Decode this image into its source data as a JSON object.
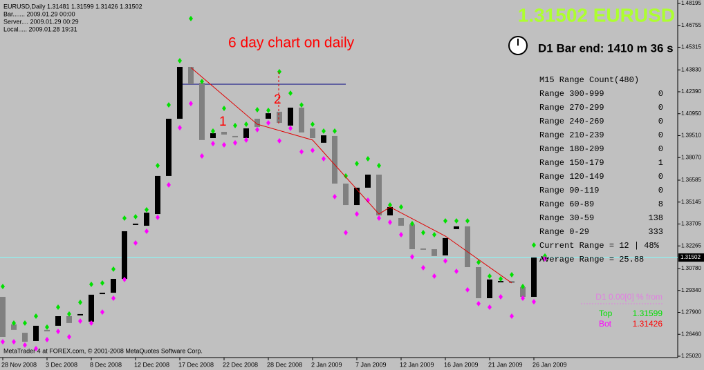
{
  "chart_data": {
    "type": "candlestick",
    "header": [
      "EURUSD,Daily  1.31481 1.31599 1.31426 1.31502",
      "Bar....... 2009.01.29 00:00",
      "Server.... 2009.01.29 00:29",
      "Local..... 2009.01.28 19:31"
    ],
    "title": "1.31502 EURUSD",
    "annotation": "6 day chart on daily",
    "marks": [
      "1",
      "2"
    ],
    "bar_end": "D1 Bar end: 1410 m 36 s",
    "range_panel": {
      "title": "M15 Range Count(480)",
      "rows": [
        {
          "label": "Range 300-999",
          "count": 0
        },
        {
          "label": "Range 270-299",
          "count": 0
        },
        {
          "label": "Range 240-269",
          "count": 0
        },
        {
          "label": "Range 210-239",
          "count": 0
        },
        {
          "label": "Range 180-209",
          "count": 0
        },
        {
          "label": "Range 150-179",
          "count": 1
        },
        {
          "label": "Range 120-149",
          "count": 0
        },
        {
          "label": "Range 90-119",
          "count": 0
        },
        {
          "label": "Range 60-89",
          "count": 8
        },
        {
          "label": "Range 30-59",
          "count": 138
        },
        {
          "label": "Range 0-29",
          "count": 333
        }
      ],
      "current": "Current Range = 12 | 48%",
      "average": "Average Range = 25.88"
    },
    "d1_note": "D1 0.00[0] % from",
    "top": {
      "label": "Top",
      "value": 1.31599
    },
    "bot": {
      "label": "Bot",
      "value": 1.31426
    },
    "footer": "MetaTrader 4 at FOREX.com, © 2001-2008 MetaQuotes Software Corp.",
    "categories": [
      "28 Nov 2008",
      null,
      null,
      null,
      "3 Dec 2008",
      null,
      null,
      null,
      "8 Dec 2008",
      null,
      null,
      null,
      "12 Dec 2008",
      null,
      null,
      null,
      "17 Dec 2008",
      null,
      null,
      null,
      "22 Dec 2008",
      null,
      null,
      null,
      "28 Dec 2008",
      null,
      null,
      null,
      "2 Jan 2009",
      null,
      null,
      null,
      "7 Jan 2009",
      null,
      null,
      null,
      "12 Jan 2009",
      null,
      null,
      null,
      "16 Jan 2009",
      null,
      null,
      null,
      "21 Jan 2009",
      null,
      null,
      null,
      "26 Jan 2009",
      null
    ],
    "open": [
      1.2892,
      1.2711,
      1.2656,
      1.2602,
      1.2675,
      1.2702,
      1.2765,
      1.277,
      1.2729,
      1.2915,
      1.2919,
      1.301,
      1.3368,
      1.3359,
      1.3436,
      1.3686,
      1.4062,
      1.4402,
      1.4298,
      1.3935,
      1.3976,
      1.3949,
      1.3935,
      1.4062,
      1.4062,
      1.4108,
      1.4017,
      1.4135,
      1.3999,
      1.3904,
      1.3949,
      1.3636,
      1.3495,
      1.3609,
      1.3695,
      1.3427,
      1.3409,
      1.3368,
      1.321,
      1.3205,
      1.3164,
      1.3337,
      1.3355,
      1.3087,
      1.2883,
      1.2987,
      1.2996,
      1.2956,
      1.2892,
      1.31481
    ],
    "high": [
      1.296,
      1.272,
      1.272,
      1.2765,
      1.2693,
      1.2824,
      1.2779,
      1.2856,
      1.2974,
      1.2983,
      1.3074,
      1.3409,
      1.3418,
      1.3464,
      1.3754,
      1.4153,
      1.4443,
      1.472,
      1.4307,
      1.3981,
      1.413,
      1.4017,
      1.4026,
      1.4121,
      1.4117,
      1.4371,
      1.423,
      1.4153,
      1.4026,
      1.3981,
      1.3981,
      1.3686,
      1.3767,
      1.3799,
      1.3754,
      1.3495,
      1.3482,
      1.3373,
      1.3314,
      1.33,
      1.3391,
      1.3391,
      1.3391,
      1.3119,
      1.3028,
      1.301,
      1.3037,
      1.296,
      1.3232,
      1.31599
    ],
    "low": [
      1.2597,
      1.2597,
      1.2575,
      1.2552,
      1.2611,
      1.2665,
      1.2629,
      1.2733,
      1.272,
      1.2792,
      1.2883,
      1.3006,
      1.3246,
      1.3323,
      1.3414,
      1.3627,
      1.4003,
      1.4162,
      1.3817,
      1.3899,
      1.389,
      1.3904,
      1.3922,
      1.399,
      1.4035,
      1.3917,
      1.3999,
      1.3845,
      1.3854,
      1.3799,
      1.355,
      1.3314,
      1.3436,
      1.3527,
      1.3409,
      1.3382,
      1.33,
      1.3155,
      1.3083,
      1.3028,
      1.3128,
      1.306,
      1.2938,
      1.2847,
      1.2824,
      1.2892,
      1.2765,
      1.2883,
      1.286,
      1.31426
    ],
    "close": [
      1.2629,
      1.2675,
      1.2597,
      1.2702,
      1.2665,
      1.2765,
      1.272,
      1.2779,
      1.2906,
      1.2919,
      1.301,
      1.3323,
      1.3373,
      1.3445,
      1.3686,
      1.4062,
      1.4402,
      1.4289,
      1.3922,
      1.3967,
      1.3958,
      1.3944,
      1.3999,
      1.4008,
      1.4098,
      1.4035,
      1.4135,
      1.3972,
      1.3935,
      1.3953,
      1.3636,
      1.3495,
      1.3609,
      1.3695,
      1.3427,
      1.3482,
      1.3359,
      1.3205,
      1.3201,
      1.316,
      1.3278,
      1.3355,
      1.3087,
      1.2883,
      1.3006,
      1.2996,
      1.2983,
      1.2892,
      1.315,
      1.31502
    ],
    "up_color": "#000000",
    "down_color": "#808080",
    "high_marker_color": "#00e000",
    "low_marker_color": "#ff00ff",
    "zigzag": {
      "x": [
        17,
        23,
        28,
        34,
        35,
        40,
        46
      ],
      "values": [
        1.4398,
        1.4026,
        1.3922,
        1.3436,
        1.3482,
        1.3291,
        1.2983
      ],
      "color": "#e00000"
    },
    "hline": {
      "value": 1.4289,
      "x": [
        16,
        31
      ],
      "color": "#000080"
    },
    "current_price": 1.31502,
    "current_price_color": "#80ffff",
    "ylim": [
      1.2493,
      1.4842
    ],
    "yticks": [
      1.48195,
      1.46755,
      1.45315,
      {
        "value": 1.4383,
        "label": "1.43830"
      },
      {
        "value": 1.4239,
        "label": "1.42390"
      },
      {
        "value": 1.4095,
        "label": "1.40950"
      },
      {
        "value": 1.3951,
        "label": "1.39510"
      },
      {
        "value": 1.3807,
        "label": "1.38070"
      },
      1.36585,
      1.35145,
      1.33705,
      1.32265,
      {
        "value": 1.3078,
        "label": "1.30780"
      },
      {
        "value": 1.2934,
        "label": "1.29340"
      },
      {
        "value": 1.279,
        "label": "1.27900"
      },
      {
        "value": 1.2646,
        "label": "1.26460"
      },
      {
        "value": 1.2502,
        "label": "1.25020"
      }
    ]
  }
}
